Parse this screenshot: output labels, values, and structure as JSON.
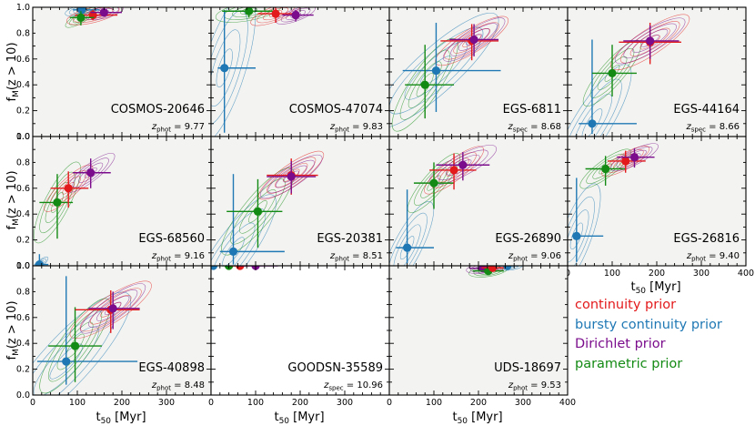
{
  "figure": {
    "y_label_main": "f",
    "y_label_sub": "M",
    "y_label_rest": "(z > 10)",
    "x_label_main": "t",
    "x_label_sub": "50",
    "x_label_rest": " [Myr]"
  },
  "colors": {
    "continuity": "#e31a1c",
    "bursty": "#1f78b4",
    "dirichlet": "#7b0d8c",
    "parametric": "#138a13",
    "panel_bg": "#f3f4f1",
    "axis": "#000000"
  },
  "legend": [
    {
      "key": "continuity",
      "label": "continuity prior",
      "color": "#e31a1c"
    },
    {
      "key": "bursty",
      "label": "bursty continuity prior",
      "color": "#1f78b4"
    },
    {
      "key": "dirichlet",
      "label": "Dirichlet prior",
      "color": "#7b0d8c"
    },
    {
      "key": "parametric",
      "label": "parametric prior",
      "color": "#138a13"
    }
  ],
  "chart_data": {
    "type": "scatter",
    "subtype": "posterior contour grid with error bars",
    "xlabel": "t50 [Myr]",
    "ylabel": "fM(z > 10)",
    "xlim": [
      0,
      400
    ],
    "ylim": [
      0.0,
      1.0
    ],
    "x_ticks": [
      "0",
      "100",
      "200",
      "300",
      "400"
    ],
    "y_ticks": [
      "0.0",
      "0.2",
      "0.4",
      "0.6",
      "0.8",
      "1.0"
    ],
    "panels": [
      {
        "name": "COSMOS-20646",
        "z_type": "phot",
        "z_value": "9.77",
        "has_contours": true,
        "points": [
          {
            "prior": "bursty",
            "x": 110,
            "y": 0.98,
            "xerr": [
              20,
              40
            ],
            "yerr": [
              0.03,
              0.02
            ]
          },
          {
            "prior": "continuity",
            "x": 135,
            "y": 0.94,
            "xerr": [
              40,
              55
            ],
            "yerr": [
              0.04,
              0.04
            ]
          },
          {
            "prior": "dirichlet",
            "x": 160,
            "y": 0.96,
            "xerr": [
              30,
              40
            ],
            "yerr": [
              0.03,
              0.03
            ]
          },
          {
            "prior": "parametric",
            "x": 108,
            "y": 0.92,
            "xerr": [
              25,
              30
            ],
            "yerr": [
              0.06,
              0.05
            ]
          }
        ]
      },
      {
        "name": "COSMOS-47074",
        "z_type": "phot",
        "z_value": "9.83",
        "has_contours": true,
        "points": [
          {
            "prior": "bursty",
            "x": 30,
            "y": 0.53,
            "xerr": [
              15,
              70
            ],
            "yerr": [
              0.5,
              0.45
            ]
          },
          {
            "prior": "parametric",
            "x": 85,
            "y": 0.97,
            "xerr": [
              60,
              60
            ],
            "yerr": [
              0.05,
              0.03
            ]
          },
          {
            "prior": "continuity",
            "x": 145,
            "y": 0.95,
            "xerr": [
              40,
              50
            ],
            "yerr": [
              0.07,
              0.05
            ]
          },
          {
            "prior": "dirichlet",
            "x": 190,
            "y": 0.94,
            "xerr": [
              30,
              40
            ],
            "yerr": [
              0.05,
              0.04
            ]
          }
        ]
      },
      {
        "name": "EGS-6811",
        "z_type": "spec",
        "z_value": "8.68",
        "has_contours": true,
        "points": [
          {
            "prior": "bursty",
            "x": 105,
            "y": 0.51,
            "xerr": [
              75,
              145
            ],
            "yerr": [
              0.32,
              0.37
            ]
          },
          {
            "prior": "parametric",
            "x": 80,
            "y": 0.4,
            "xerr": [
              45,
              65
            ],
            "yerr": [
              0.26,
              0.31
            ]
          },
          {
            "prior": "continuity",
            "x": 185,
            "y": 0.74,
            "xerr": [
              70,
              60
            ],
            "yerr": [
              0.15,
              0.13
            ]
          },
          {
            "prior": "dirichlet",
            "x": 190,
            "y": 0.75,
            "xerr": [
              55,
              55
            ],
            "yerr": [
              0.13,
              0.12
            ]
          }
        ]
      },
      {
        "name": "EGS-44164",
        "z_type": "spec",
        "z_value": "8.66",
        "has_contours": true,
        "points": [
          {
            "prior": "bursty",
            "x": 55,
            "y": 0.1,
            "xerr": [
              30,
              100
            ],
            "yerr": [
              0.08,
              0.65
            ]
          },
          {
            "prior": "parametric",
            "x": 100,
            "y": 0.49,
            "xerr": [
              45,
              55
            ],
            "yerr": [
              0.18,
              0.22
            ]
          },
          {
            "prior": "continuity",
            "x": 185,
            "y": 0.73,
            "xerr": [
              70,
              70
            ],
            "yerr": [
              0.17,
              0.15
            ]
          },
          {
            "prior": "dirichlet",
            "x": 185,
            "y": 0.74,
            "xerr": [
              60,
              65
            ],
            "yerr": [
              0.14,
              0.12
            ]
          }
        ]
      },
      {
        "name": "EGS-68560",
        "z_type": "phot",
        "z_value": "9.16",
        "has_contours": true,
        "points": [
          {
            "prior": "bursty",
            "x": 15,
            "y": 0.01,
            "xerr": [
              10,
              20
            ],
            "yerr": [
              0.01,
              0.08
            ]
          },
          {
            "prior": "parametric",
            "x": 55,
            "y": 0.49,
            "xerr": [
              40,
              35
            ],
            "yerr": [
              0.28,
              0.22
            ]
          },
          {
            "prior": "continuity",
            "x": 80,
            "y": 0.6,
            "xerr": [
              40,
              45
            ],
            "yerr": [
              0.15,
              0.13
            ]
          },
          {
            "prior": "dirichlet",
            "x": 130,
            "y": 0.72,
            "xerr": [
              40,
              45
            ],
            "yerr": [
              0.12,
              0.11
            ]
          }
        ]
      },
      {
        "name": "EGS-20381",
        "z_type": "phot",
        "z_value": "8.51",
        "has_contours": true,
        "points": [
          {
            "prior": "bursty",
            "x": 50,
            "y": 0.11,
            "xerr": [
              30,
              115
            ],
            "yerr": [
              0.1,
              0.6
            ]
          },
          {
            "prior": "parametric",
            "x": 105,
            "y": 0.42,
            "xerr": [
              70,
              55
            ],
            "yerr": [
              0.28,
              0.25
            ]
          },
          {
            "prior": "continuity",
            "x": 180,
            "y": 0.7,
            "xerr": [
              55,
              60
            ],
            "yerr": [
              0.15,
              0.13
            ]
          },
          {
            "prior": "dirichlet",
            "x": 180,
            "y": 0.69,
            "xerr": [
              55,
              55
            ],
            "yerr": [
              0.13,
              0.12
            ]
          }
        ]
      },
      {
        "name": "EGS-26890",
        "z_type": "phot",
        "z_value": "9.06",
        "has_contours": true,
        "points": [
          {
            "prior": "bursty",
            "x": 40,
            "y": 0.14,
            "xerr": [
              25,
              60
            ],
            "yerr": [
              0.12,
              0.45
            ]
          },
          {
            "prior": "parametric",
            "x": 100,
            "y": 0.64,
            "xerr": [
              45,
              45
            ],
            "yerr": [
              0.2,
              0.16
            ]
          },
          {
            "prior": "continuity",
            "x": 145,
            "y": 0.74,
            "xerr": [
              55,
              50
            ],
            "yerr": [
              0.15,
              0.13
            ]
          },
          {
            "prior": "dirichlet",
            "x": 165,
            "y": 0.78,
            "xerr": [
              60,
              60
            ],
            "yerr": [
              0.12,
              0.1
            ]
          }
        ]
      },
      {
        "name": "EGS-26816",
        "z_type": "phot",
        "z_value": "9.40",
        "has_contours": true,
        "points": [
          {
            "prior": "bursty",
            "x": 20,
            "y": 0.23,
            "xerr": [
              10,
              60
            ],
            "yerr": [
              0.2,
              0.45
            ]
          },
          {
            "prior": "parametric",
            "x": 85,
            "y": 0.75,
            "xerr": [
              45,
              45
            ],
            "yerr": [
              0.13,
              0.1
            ]
          },
          {
            "prior": "continuity",
            "x": 130,
            "y": 0.81,
            "xerr": [
              40,
              45
            ],
            "yerr": [
              0.09,
              0.08
            ]
          },
          {
            "prior": "dirichlet",
            "x": 150,
            "y": 0.84,
            "xerr": [
              40,
              45
            ],
            "yerr": [
              0.08,
              0.07
            ]
          }
        ]
      },
      {
        "name": "EGS-40898",
        "z_type": "phot",
        "z_value": "8.48",
        "has_contours": true,
        "points": [
          {
            "prior": "bursty",
            "x": 75,
            "y": 0.26,
            "xerr": [
              65,
              160
            ],
            "yerr": [
              0.18,
              0.66
            ]
          },
          {
            "prior": "parametric",
            "x": 95,
            "y": 0.38,
            "xerr": [
              60,
              60
            ],
            "yerr": [
              0.28,
              0.3
            ]
          },
          {
            "prior": "continuity",
            "x": 175,
            "y": 0.66,
            "xerr": [
              80,
              65
            ],
            "yerr": [
              0.18,
              0.15
            ]
          },
          {
            "prior": "dirichlet",
            "x": 180,
            "y": 0.67,
            "xerr": [
              55,
              60
            ],
            "yerr": [
              0.16,
              0.13
            ]
          }
        ]
      },
      {
        "name": "GOODSN-35589",
        "z_type": "spec",
        "z_value": "10.96",
        "has_contours": false,
        "points": [
          {
            "prior": "bursty",
            "x": 5,
            "y": 1.0,
            "xerr": [
              5,
              10
            ],
            "yerr": [
              0,
              0
            ]
          },
          {
            "prior": "parametric",
            "x": 40,
            "y": 1.0,
            "xerr": [
              15,
              15
            ],
            "yerr": [
              0,
              0
            ]
          },
          {
            "prior": "continuity",
            "x": 65,
            "y": 1.0,
            "xerr": [
              20,
              20
            ],
            "yerr": [
              0,
              0
            ]
          },
          {
            "prior": "dirichlet",
            "x": 100,
            "y": 1.0,
            "xerr": [
              40,
              50
            ],
            "yerr": [
              0,
              0
            ]
          }
        ]
      },
      {
        "name": "UDS-18697",
        "z_type": "phot",
        "z_value": "9.53",
        "has_contours": true,
        "points": [
          {
            "prior": "dirichlet",
            "x": 210,
            "y": 0.98,
            "xerr": [
              30,
              30
            ],
            "yerr": [
              0.015,
              0.01
            ]
          },
          {
            "prior": "parametric",
            "x": 222,
            "y": 0.96,
            "xerr": [
              35,
              35
            ],
            "yerr": [
              0.02,
              0.015
            ]
          },
          {
            "prior": "continuity",
            "x": 232,
            "y": 0.985,
            "xerr": [
              25,
              25
            ],
            "yerr": [
              0.01,
              0.01
            ]
          },
          {
            "prior": "bursty",
            "x": 265,
            "y": 1.0,
            "xerr": [
              30,
              25
            ],
            "yerr": [
              0.01,
              0.0
            ]
          }
        ]
      }
    ]
  }
}
